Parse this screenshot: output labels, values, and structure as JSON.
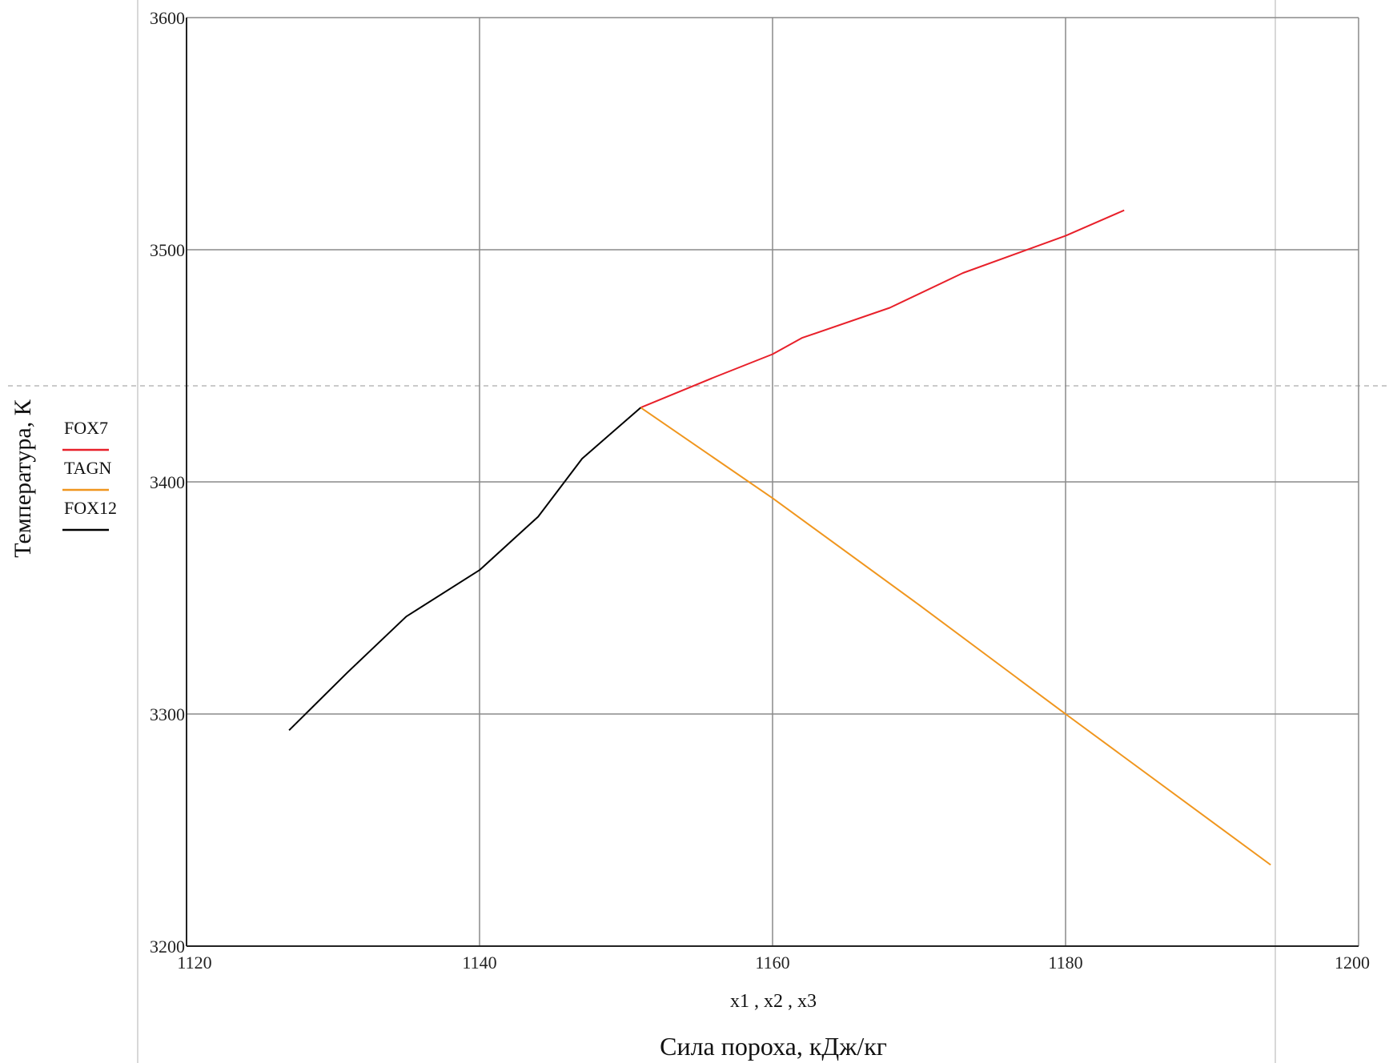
{
  "chart_data": {
    "type": "line",
    "xlabel": "Сила пороха, кДж/кг",
    "x_expression": "x1 , x2 , x3",
    "ylabel": "Температура, К",
    "xlim": [
      1120,
      1200
    ],
    "ylim": [
      3200,
      3600
    ],
    "x_ticks": [
      1120,
      1140,
      1160,
      1180,
      1200
    ],
    "y_ticks": [
      3200,
      3300,
      3400,
      3500,
      3600
    ],
    "grid": true,
    "legend_position": "left",
    "series": [
      {
        "name": "FOX7",
        "color": "#e8202a",
        "x": [
          1151,
          1156,
          1160,
          1162,
          1168,
          1173,
          1180,
          1184
        ],
        "y": [
          3432,
          3445,
          3455,
          3462,
          3475,
          3490,
          3506,
          3517
        ]
      },
      {
        "name": "TAGN",
        "color": "#f0961e",
        "x": [
          1151,
          1160,
          1170,
          1180,
          1194
        ],
        "y": [
          3432,
          3393,
          3347,
          3300,
          3235
        ]
      },
      {
        "name": "FOX12",
        "color": "#000000",
        "x": [
          1127,
          1131,
          1135,
          1140,
          1144,
          1147,
          1151
        ],
        "y": [
          3293,
          3318,
          3342,
          3362,
          3385,
          3410,
          3432
        ]
      }
    ]
  }
}
